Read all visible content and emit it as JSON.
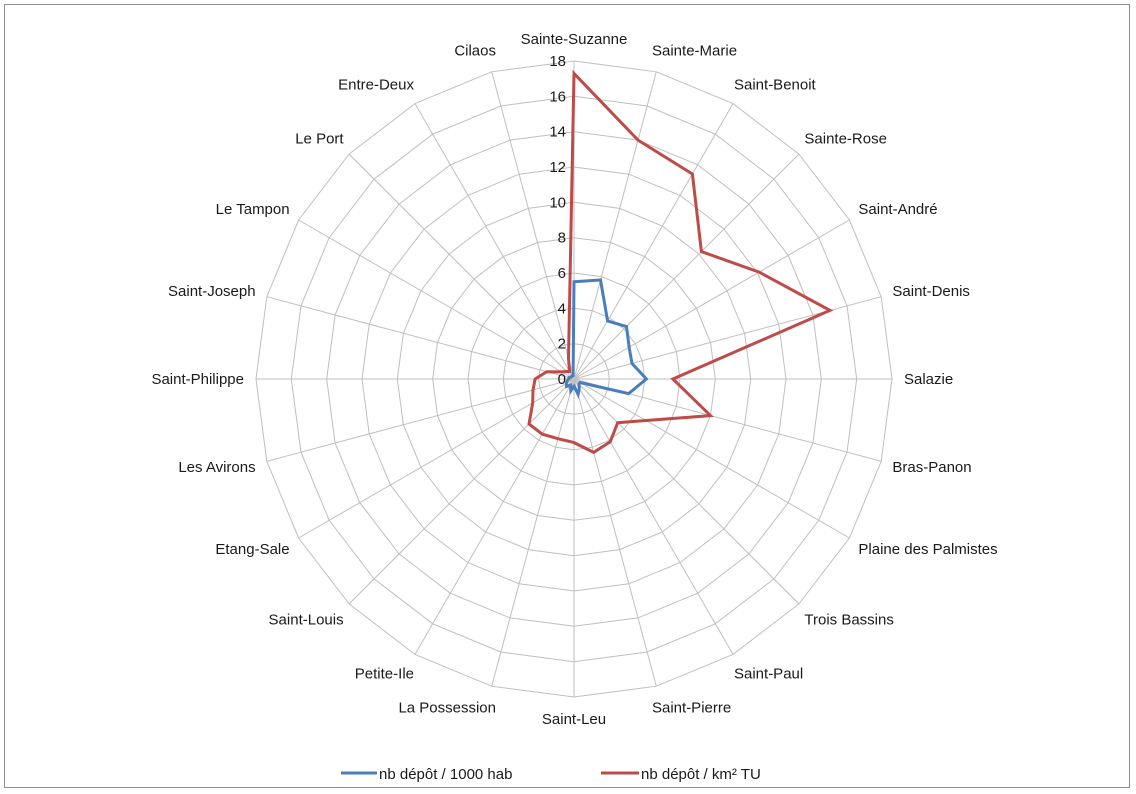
{
  "chart_data": {
    "type": "radar",
    "categories": [
      "Sainte-Suzanne",
      "Sainte-Marie",
      "Saint-Benoit",
      "Sainte-Rose",
      "Saint-André",
      "Saint-Denis",
      "Salazie",
      "Bras-Panon",
      "Plaine des Palmistes",
      "Trois Bassins",
      "Saint-Paul",
      "Saint-Pierre",
      "Saint-Leu",
      "La Possession",
      "Petite-Ile",
      "Saint-Louis",
      "Etang-Sale",
      "Les Avirons",
      "Saint-Philippe",
      "Saint-Joseph",
      "Le Tampon",
      "Le Port",
      "Entre-Deux",
      "Cilaos"
    ],
    "series": [
      {
        "name": "nb dépôt / 1000 hab",
        "color": "#4a7ebb",
        "values": [
          5.5,
          5.8,
          3.8,
          4.2,
          3.6,
          3.4,
          4.1,
          3.2,
          0.4,
          0.4,
          0.6,
          0.9,
          0.4,
          0.7,
          0.4,
          0.6,
          0.5,
          0.4,
          0.3,
          0.3,
          0.2,
          0.2,
          0.2,
          0.2
        ]
      },
      {
        "name": "nb dépôt / km² TU",
        "color": "#be4b48",
        "values": [
          17.3,
          14.0,
          13.4,
          10.2,
          12.1,
          15.0,
          5.6,
          8.0,
          4.7,
          3.5,
          4.1,
          4.3,
          3.6,
          3.5,
          3.6,
          3.6,
          2.7,
          2.4,
          2.2,
          1.6,
          0.8,
          0.6,
          0.5,
          1.2
        ]
      }
    ],
    "rlim": [
      0,
      18
    ],
    "ticks": [
      0,
      2,
      4,
      6,
      8,
      10,
      12,
      14,
      16,
      18
    ],
    "grid": true,
    "legend": "bottom"
  }
}
